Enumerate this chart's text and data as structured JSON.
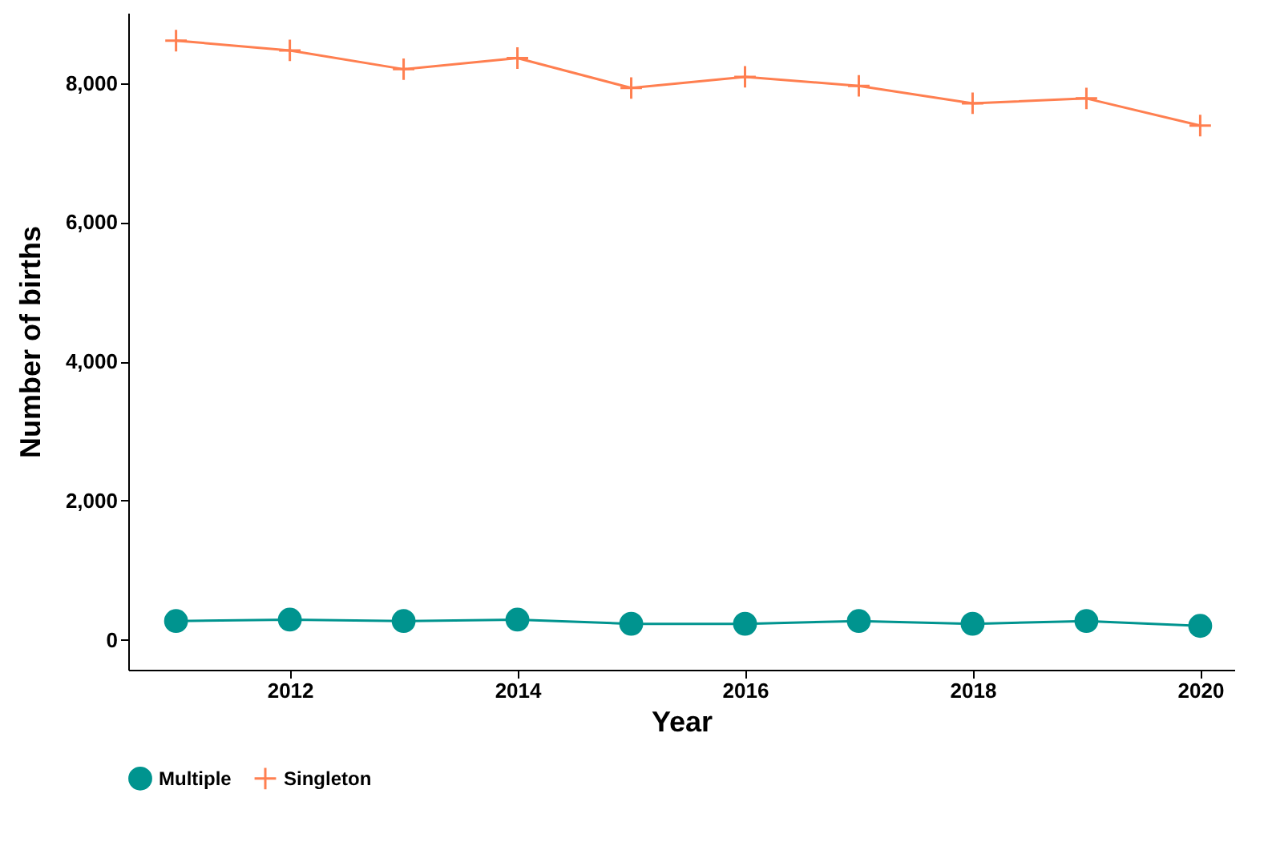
{
  "chart_data": {
    "type": "line",
    "xlabel": "Year",
    "ylabel": "Number of births",
    "x": [
      2011,
      2012,
      2013,
      2014,
      2015,
      2016,
      2017,
      2018,
      2019,
      2020
    ],
    "series": [
      {
        "name": "Multiple",
        "color": "#00948f",
        "marker": "circle",
        "values": [
          270,
          290,
          270,
          290,
          230,
          230,
          270,
          230,
          270,
          200
        ]
      },
      {
        "name": "Singleton",
        "color": "#ff7f50",
        "marker": "cross",
        "values": [
          8610,
          8470,
          8200,
          8360,
          7930,
          8090,
          7960,
          7710,
          7780,
          7390
        ]
      }
    ],
    "xlim": [
      2010.58,
      2020.3
    ],
    "xticks": [
      2012,
      2014,
      2016,
      2018,
      2020
    ],
    "ylim": [
      -430,
      9010
    ],
    "yticks": [
      0,
      {
        "value": 2000,
        "label": "2,000"
      },
      {
        "value": 4000,
        "label": "4,000"
      },
      {
        "value": 6000,
        "label": "6,000"
      },
      {
        "value": 8000,
        "label": "8,000"
      }
    ],
    "grid": false,
    "legend": "bottom"
  }
}
